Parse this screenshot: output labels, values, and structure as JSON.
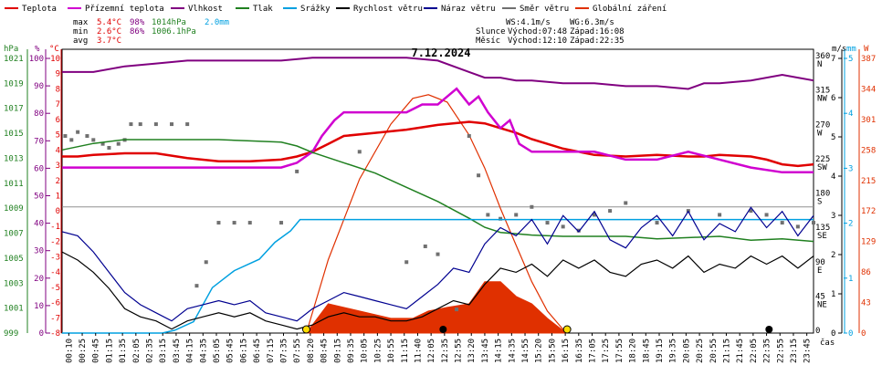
{
  "title": "7.12.2024",
  "legend": [
    {
      "label": "Teplota",
      "color": "#e00000"
    },
    {
      "label": "Přízemní teplota",
      "color": "#d000d0"
    },
    {
      "label": "Vlhkost",
      "color": "#800080"
    },
    {
      "label": "Tlak",
      "color": "#208020"
    },
    {
      "label": "Srážky",
      "color": "#00a0e0"
    },
    {
      "label": "Rychlost větru",
      "color": "#000000"
    },
    {
      "label": "Náraz větru",
      "color": "#000090"
    },
    {
      "label": "Směr větru",
      "color": "#707070"
    },
    {
      "label": "Globální záření",
      "color": "#e03000"
    }
  ],
  "stats": {
    "max_label": "max",
    "max_temp": "5.4°C",
    "max_hum": "98%",
    "max_press": "1014hPa",
    "max_rain": "2.0mm",
    "min_label": "min",
    "min_temp": "2.6°C",
    "min_hum": "86%",
    "min_press": "1006.1hPa",
    "avg_label": "avg",
    "avg_temp": "3.7°C"
  },
  "info": {
    "wind": "WS:4.1m/s",
    "gust": "WG:6.3m/s",
    "sun_label": "Slunce",
    "sunrise": "Východ:07:48",
    "sunset": "Západ:16:08",
    "moon_label": "Měsíc",
    "moonrise": "Východ:12:10",
    "moonset": "Západ:22:35"
  },
  "axis_units": {
    "hpa": "hPa",
    "pct": "%",
    "degc": "°C",
    "ms": "m/s",
    "mm": "mm",
    "w": "W",
    "time": "čas"
  },
  "axes": {
    "hpa": [
      "1021",
      "1019",
      "1017",
      "1015",
      "1013",
      "1011",
      "1009",
      "1007",
      "1005",
      "1003",
      "1001",
      "999"
    ],
    "pct": [
      "100",
      "90",
      "80",
      "70",
      "60",
      "50",
      "40",
      "30",
      "20",
      "10",
      "0"
    ],
    "degc": [
      "10",
      "9",
      "8",
      "7",
      "6",
      "5",
      "4",
      "3",
      "2",
      "1",
      "0",
      "-1",
      "-2",
      "-3",
      "-4",
      "-5",
      "-6",
      "-7",
      "-8"
    ],
    "deg_dir": [
      "360",
      "315",
      "270",
      "225",
      "180",
      "135",
      "90",
      "45",
      "0"
    ],
    "dir": [
      "N",
      "NW",
      "W",
      "SW",
      "S",
      "SE",
      "E",
      "NE"
    ],
    "ms": [
      "7",
      "6",
      "5",
      "4",
      "3",
      "2",
      "1",
      "0"
    ],
    "mm": [
      "5",
      "4",
      "3",
      "2",
      "1",
      "0"
    ],
    "w": [
      "387",
      "344",
      "301",
      "258",
      "215",
      "172",
      "129",
      "86",
      "43",
      "0"
    ]
  },
  "chart_data": {
    "type": "line",
    "title": "7.12.2024",
    "x_ticks": [
      "00:10",
      "00:25",
      "00:45",
      "01:15",
      "01:35",
      "02:05",
      "02:35",
      "03:15",
      "03:45",
      "04:15",
      "04:35",
      "05:05",
      "05:45",
      "06:15",
      "06:45",
      "07:15",
      "07:35",
      "07:55",
      "08:20",
      "08:45",
      "09:15",
      "09:35",
      "10:05",
      "10:25",
      "10:55",
      "11:15",
      "11:40",
      "12:05",
      "12:35",
      "12:55",
      "13:20",
      "13:45",
      "14:15",
      "14:35",
      "14:55",
      "15:20",
      "15:50",
      "16:15",
      "16:35",
      "17:05",
      "17:25",
      "17:55",
      "18:20",
      "18:45",
      "19:15",
      "19:35",
      "20:05",
      "20:25",
      "20:55",
      "21:15",
      "21:45",
      "22:05",
      "22:35",
      "22:55",
      "23:15",
      "23:45"
    ],
    "x_range_h": [
      0,
      24
    ],
    "ylim_temp_c": [
      -8,
      10
    ],
    "ylim_pressure_hpa": [
      999,
      1021
    ],
    "ylim_humidity_pct": [
      0,
      100
    ],
    "ylim_wind_ms": [
      0,
      7
    ],
    "ylim_rain_mm": [
      0,
      5
    ],
    "ylim_radiation_w": [
      0,
      387
    ],
    "series": [
      {
        "name": "Teplota",
        "axis": "temp",
        "color": "#e00000",
        "x": [
          0,
          0.5,
          1,
          2,
          3,
          4,
          5,
          6,
          7,
          7.5,
          8,
          8.5,
          9,
          10,
          11,
          12,
          13,
          13.5,
          14,
          14.5,
          15,
          16,
          17,
          18,
          19,
          20,
          20.5,
          21,
          22,
          22.5,
          23,
          23.5,
          24
        ],
        "y": [
          3.2,
          3.2,
          3.3,
          3.4,
          3.4,
          3.1,
          2.9,
          2.9,
          3.0,
          3.2,
          3.5,
          4.0,
          4.5,
          4.7,
          4.9,
          5.2,
          5.4,
          5.3,
          5.0,
          4.7,
          4.3,
          3.7,
          3.3,
          3.2,
          3.3,
          3.2,
          3.2,
          3.3,
          3.2,
          3.0,
          2.7,
          2.6,
          2.7
        ]
      },
      {
        "name": "Přízemní teplota",
        "axis": "temp",
        "color": "#d000d0",
        "x": [
          0,
          1,
          2,
          3,
          4,
          5,
          6,
          7,
          7.5,
          8,
          8.3,
          8.7,
          9,
          10,
          11,
          11.5,
          12,
          12.3,
          12.6,
          13,
          13.3,
          13.6,
          14,
          14.3,
          14.6,
          15,
          15.5,
          16,
          17,
          18,
          19,
          20,
          21,
          22,
          23,
          24
        ],
        "y": [
          2.5,
          2.5,
          2.5,
          2.5,
          2.5,
          2.5,
          2.5,
          2.5,
          2.8,
          3.5,
          4.5,
          5.5,
          6.0,
          6.0,
          6.0,
          6.5,
          6.5,
          7.0,
          7.5,
          6.5,
          7.0,
          6.0,
          5.0,
          5.5,
          4.0,
          3.5,
          3.5,
          3.5,
          3.5,
          3.0,
          3.0,
          3.5,
          3.0,
          2.5,
          2.2,
          2.2
        ]
      },
      {
        "name": "Vlhkost",
        "axis": "hum",
        "color": "#800080",
        "x": [
          0,
          1,
          2,
          3,
          4,
          5,
          6,
          7,
          8,
          9,
          10,
          11,
          12,
          13,
          13.5,
          14,
          14.5,
          15,
          16,
          17,
          18,
          19,
          20,
          20.5,
          21,
          22,
          23,
          23.5,
          24
        ],
        "y": [
          92,
          92,
          94,
          95,
          96,
          96,
          96,
          96,
          97,
          97,
          97,
          97,
          96,
          92,
          90,
          90,
          89,
          89,
          88,
          88,
          87,
          87,
          86,
          88,
          88,
          89,
          91,
          90,
          89
        ]
      },
      {
        "name": "Tlak",
        "axis": "press",
        "color": "#208020",
        "x": [
          0,
          1,
          2,
          3,
          4,
          5,
          6,
          7,
          7.5,
          8,
          9,
          10,
          11,
          12,
          13,
          13.5,
          14,
          15,
          16,
          17,
          18,
          19,
          20,
          21,
          22,
          23,
          24
        ],
        "y": [
          1013.2,
          1013.7,
          1014.0,
          1014.0,
          1014.0,
          1014.0,
          1013.9,
          1013.8,
          1013.5,
          1013.0,
          1012.2,
          1011.4,
          1010.3,
          1009.2,
          1007.9,
          1007.2,
          1006.8,
          1006.6,
          1006.5,
          1006.5,
          1006.5,
          1006.3,
          1006.4,
          1006.5,
          1006.2,
          1006.3,
          1006.1
        ]
      },
      {
        "name": "Srážky",
        "axis": "rain",
        "color": "#00a0e0",
        "x": [
          0,
          2.5,
          3.2,
          3.6,
          4.2,
          4.8,
          5.5,
          6.3,
          6.8,
          7.3,
          7.6,
          24
        ],
        "y": [
          0,
          0,
          0,
          0.05,
          0.2,
          0.8,
          1.1,
          1.3,
          1.6,
          1.8,
          2.0,
          2.0
        ]
      },
      {
        "name": "Rychlost větru",
        "axis": "wind",
        "color": "#000000",
        "x": [
          0,
          0.5,
          1,
          1.5,
          2,
          2.5,
          3,
          3.5,
          4,
          4.5,
          5,
          5.5,
          6,
          6.5,
          7,
          7.5,
          8,
          8.5,
          9,
          9.5,
          10,
          10.5,
          11,
          11.5,
          12,
          12.5,
          13,
          13.5,
          14,
          14.5,
          15,
          15.5,
          16,
          16.5,
          17,
          17.5,
          18,
          18.5,
          19,
          19.5,
          20,
          20.5,
          21,
          21.5,
          22,
          22.5,
          23,
          23.5,
          24
        ],
        "y": [
          2.0,
          1.8,
          1.5,
          1.1,
          0.6,
          0.4,
          0.3,
          0.1,
          0.3,
          0.4,
          0.5,
          0.4,
          0.5,
          0.3,
          0.2,
          0.1,
          0.2,
          0.4,
          0.5,
          0.4,
          0.4,
          0.3,
          0.3,
          0.4,
          0.6,
          0.8,
          0.7,
          1.2,
          1.6,
          1.5,
          1.7,
          1.4,
          1.8,
          1.6,
          1.8,
          1.5,
          1.4,
          1.7,
          1.8,
          1.6,
          1.9,
          1.5,
          1.7,
          1.6,
          1.9,
          1.7,
          1.9,
          1.6,
          1.9
        ]
      },
      {
        "name": "Náraz větru",
        "axis": "wind",
        "color": "#000090",
        "x": [
          0,
          0.5,
          1,
          1.5,
          2,
          2.5,
          3,
          3.5,
          4,
          4.5,
          5,
          5.5,
          6,
          6.5,
          7,
          7.5,
          8,
          8.5,
          9,
          9.5,
          10,
          10.5,
          11,
          11.5,
          12,
          12.5,
          13,
          13.5,
          14,
          14.5,
          15,
          15.5,
          16,
          16.5,
          17,
          17.5,
          18,
          18.5,
          19,
          19.5,
          20,
          20.5,
          21,
          21.5,
          22,
          22.5,
          23,
          23.5,
          24
        ],
        "y": [
          2.5,
          2.4,
          2.0,
          1.5,
          1.0,
          0.7,
          0.5,
          0.3,
          0.6,
          0.7,
          0.8,
          0.7,
          0.8,
          0.5,
          0.4,
          0.3,
          0.6,
          0.8,
          1.0,
          0.9,
          0.8,
          0.7,
          0.6,
          0.9,
          1.2,
          1.6,
          1.5,
          2.2,
          2.6,
          2.4,
          2.8,
          2.2,
          2.9,
          2.5,
          3.0,
          2.3,
          2.1,
          2.6,
          2.9,
          2.4,
          3.0,
          2.3,
          2.7,
          2.5,
          3.1,
          2.6,
          3.0,
          2.4,
          2.9
        ]
      },
      {
        "name": "Globální záření",
        "axis": "rad",
        "color": "#e03000",
        "x": [
          7.8,
          8.5,
          9.5,
          10.5,
          11.2,
          11.7,
          12.3,
          13,
          13.5,
          14,
          14.5,
          15,
          15.5,
          16.1
        ],
        "y": [
          0,
          40,
          30,
          20,
          20,
          30,
          35,
          40,
          70,
          70,
          50,
          40,
          20,
          0
        ]
      }
    ],
    "reference_curve": {
      "name": "theoretical radiation",
      "color": "#e03000",
      "x": [
        7.8,
        8.5,
        9.5,
        10.5,
        11.2,
        11.7,
        12.3,
        13,
        13.5,
        14,
        14.5,
        15,
        15.5,
        16.1
      ],
      "y": [
        0,
        100,
        210,
        285,
        320,
        325,
        315,
        270,
        225,
        170,
        120,
        70,
        30,
        0
      ]
    },
    "wind_direction_deg": {
      "x": [
        0.1,
        0.3,
        0.5,
        0.8,
        1.0,
        1.3,
        1.5,
        1.8,
        2.0,
        2.2,
        2.5,
        3.0,
        3.5,
        4.0,
        4.3,
        4.6,
        5.0,
        5.5,
        6.0,
        7.0,
        7.5,
        8.0,
        9.5,
        11.0,
        11.6,
        12.0,
        12.6,
        13.0,
        13.3,
        13.6,
        14.0,
        14.5,
        15.0,
        15.5,
        16.0,
        16.5,
        17.0,
        17.5,
        18.0,
        19.0,
        20.0,
        21.0,
        22.0,
        22.5,
        23.0,
        23.5,
        24.0
      ],
      "y": [
        250,
        245,
        255,
        250,
        245,
        240,
        235,
        240,
        245,
        265,
        265,
        265,
        265,
        265,
        60,
        90,
        140,
        140,
        140,
        140,
        205,
        230,
        230,
        90,
        110,
        100,
        30,
        250,
        200,
        150,
        145,
        150,
        160,
        140,
        135,
        130,
        150,
        155,
        165,
        140,
        155,
        150,
        155,
        150,
        140,
        135,
        140
      ]
    }
  }
}
